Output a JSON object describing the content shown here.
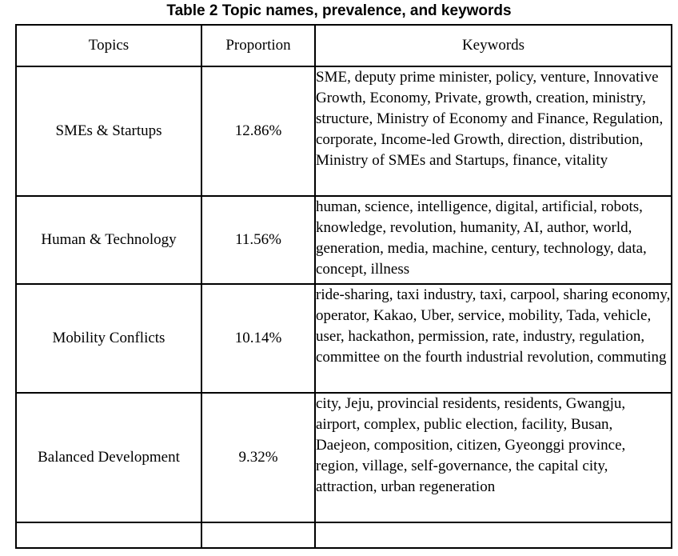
{
  "caption": "Table 2 Topic names, prevalence, and keywords",
  "headers": {
    "topics": "Topics",
    "proportion": "Proportion",
    "keywords": "Keywords"
  },
  "rows": [
    {
      "topic": "SMEs & Startups",
      "proportion": "12.86%",
      "keywords": "SME, deputy prime minister, policy, venture, Innovative Growth, Economy, Private, growth, creation, ministry, structure, Ministry of Economy and Finance, Regulation, corporate, Income-led Growth, direction, distribution, Ministry of SMEs and Startups, finance, vitality"
    },
    {
      "topic": "Human & Technology",
      "proportion": "11.56%",
      "keywords": "human, science, intelligence, digital, artificial, robots, knowledge, revolution, humanity, AI, author, world, generation, media, machine, century, technology, data, concept, illness"
    },
    {
      "topic": "Mobility Conflicts",
      "proportion": "10.14%",
      "keywords": "ride-sharing, taxi industry, taxi, carpool, sharing economy, operator, Kakao, Uber, service, mobility, Tada, vehicle, user, hackathon, permission, rate, industry, regulation, committee on the fourth industrial revolution, commuting"
    },
    {
      "topic": "Balanced Development",
      "proportion": "9.32%",
      "keywords": "city, Jeju, provincial residents, residents, Gwangju, airport, complex, public election, facility, Busan, Daejeon, composition, citizen, Gyeonggi province, region, village, self-governance, the capital city, attraction, urban regeneration"
    }
  ]
}
